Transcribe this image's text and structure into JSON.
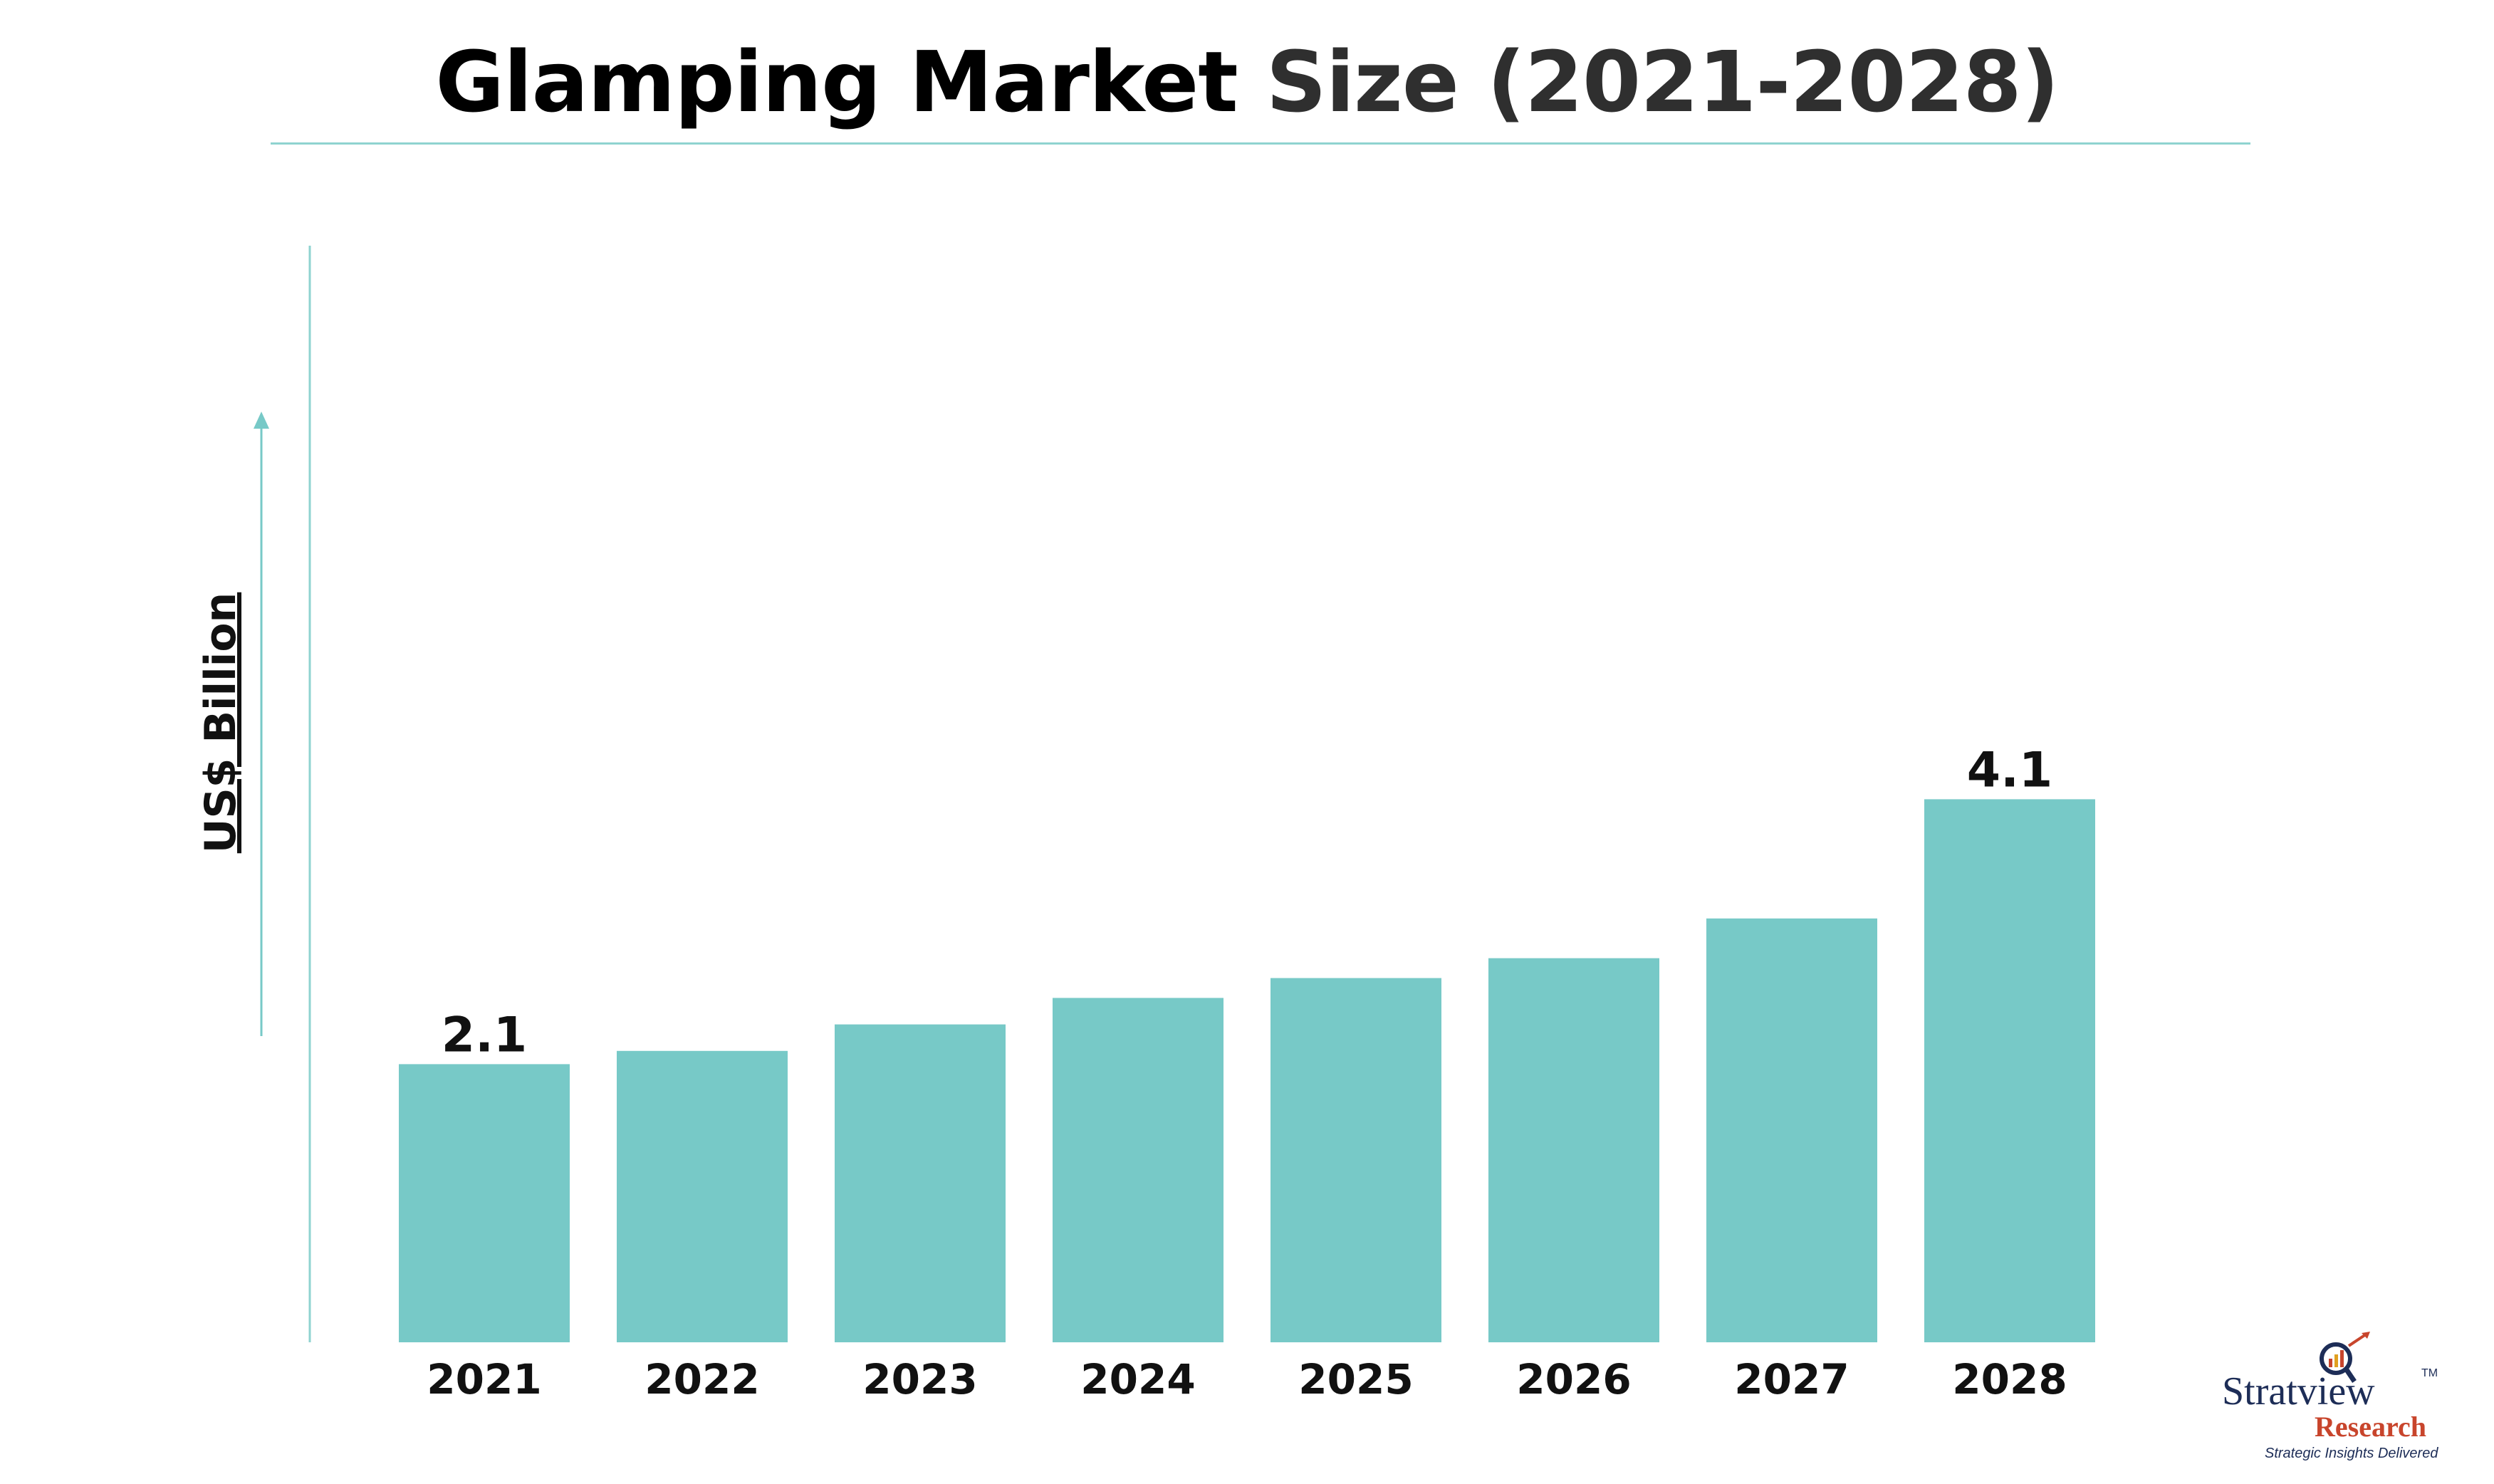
{
  "title": {
    "part1": "Glamping Market ",
    "part2": "Size (2021-2028)"
  },
  "chart_data": {
    "type": "bar",
    "title": "Glamping Market Size (2021-2028)",
    "ylabel": "US$ Billion",
    "xlabel": "",
    "categories": [
      "2021",
      "2022",
      "2023",
      "2024",
      "2025",
      "2026",
      "2027",
      "2028"
    ],
    "values": [
      2.1,
      2.2,
      2.4,
      2.6,
      2.75,
      2.9,
      3.2,
      4.1
    ],
    "data_labels": [
      {
        "index": 0,
        "text": "2.1"
      },
      {
        "index": 7,
        "text": "4.1"
      }
    ],
    "ylim": [
      0,
      5.2
    ],
    "grid": false,
    "legend": "none",
    "bar_color": "#77c9c7"
  },
  "logo": {
    "name": "Stratview",
    "tm": "TM",
    "sub": "Research",
    "tagline": "Strategic Insights Delivered"
  }
}
